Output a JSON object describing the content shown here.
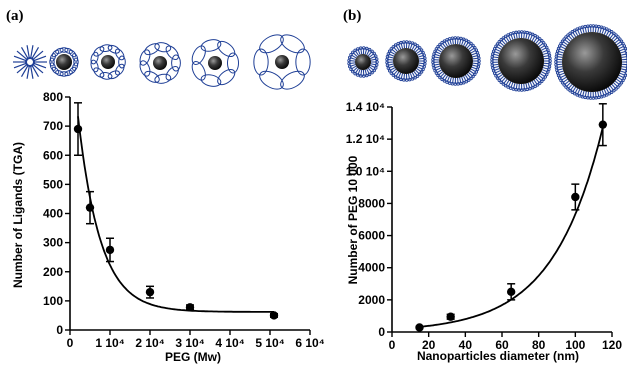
{
  "figure": {
    "panels": [
      {
        "label": "(a)"
      },
      {
        "label": "(b)"
      }
    ]
  },
  "chart_data": [
    {
      "type": "scatter",
      "title": "",
      "xlabel": "PEG (Mw)",
      "ylabel": "Number of Ligands (TGA)",
      "xlim": [
        0,
        60000
      ],
      "ylim": [
        0,
        800
      ],
      "x_ticks": [
        {
          "value": 0,
          "label": "0"
        },
        {
          "value": 10000,
          "label": "1 10⁴"
        },
        {
          "value": 20000,
          "label": "2 10⁴"
        },
        {
          "value": 30000,
          "label": "3 10⁴"
        },
        {
          "value": 40000,
          "label": "4 10⁴"
        },
        {
          "value": 50000,
          "label": "5 10⁴"
        },
        {
          "value": 60000,
          "label": "6 10⁴"
        }
      ],
      "y_ticks": [
        {
          "value": 0,
          "label": "0"
        },
        {
          "value": 100,
          "label": "100"
        },
        {
          "value": 200,
          "label": "200"
        },
        {
          "value": 300,
          "label": "300"
        },
        {
          "value": 400,
          "label": "400"
        },
        {
          "value": 500,
          "label": "500"
        },
        {
          "value": 600,
          "label": "600"
        },
        {
          "value": 700,
          "label": "700"
        },
        {
          "value": 800,
          "label": "800"
        }
      ],
      "points": [
        {
          "x": 2000,
          "y": 690,
          "err": 90
        },
        {
          "x": 5000,
          "y": 420,
          "err": 55
        },
        {
          "x": 10000,
          "y": 275,
          "err": 40
        },
        {
          "x": 20000,
          "y": 130,
          "err": 20
        },
        {
          "x": 30000,
          "y": 78,
          "err": 8
        },
        {
          "x": 51000,
          "y": 50,
          "err": 6
        }
      ],
      "fit": "exponential decay",
      "grid": false
    },
    {
      "type": "scatter",
      "title": "",
      "xlabel": "Nanoparticles diameter (nm)",
      "ylabel": "Number of PEG 10 000",
      "xlim": [
        0,
        120
      ],
      "ylim": [
        0,
        14000
      ],
      "x_ticks": [
        {
          "value": 0,
          "label": "0"
        },
        {
          "value": 20,
          "label": "20"
        },
        {
          "value": 40,
          "label": "40"
        },
        {
          "value": 60,
          "label": "60"
        },
        {
          "value": 80,
          "label": "80"
        },
        {
          "value": 100,
          "label": "100"
        },
        {
          "value": 120,
          "label": "120"
        }
      ],
      "y_ticks": [
        {
          "value": 0,
          "label": "0"
        },
        {
          "value": 2000,
          "label": "2000"
        },
        {
          "value": 4000,
          "label": "4000"
        },
        {
          "value": 6000,
          "label": "6000"
        },
        {
          "value": 8000,
          "label": "8000"
        },
        {
          "value": 10000,
          "label": "1.0 10⁴"
        },
        {
          "value": 12000,
          "label": "1.2 10⁴"
        },
        {
          "value": 14000,
          "label": "1.4 10⁴"
        }
      ],
      "points": [
        {
          "x": 15,
          "y": 280,
          "err": 60
        },
        {
          "x": 32,
          "y": 950,
          "err": 150
        },
        {
          "x": 65,
          "y": 2500,
          "err": 500
        },
        {
          "x": 100,
          "y": 8400,
          "err": 800
        },
        {
          "x": 115,
          "y": 12900,
          "err": 1300
        }
      ],
      "fit": "exponential growth",
      "grid": false
    }
  ]
}
